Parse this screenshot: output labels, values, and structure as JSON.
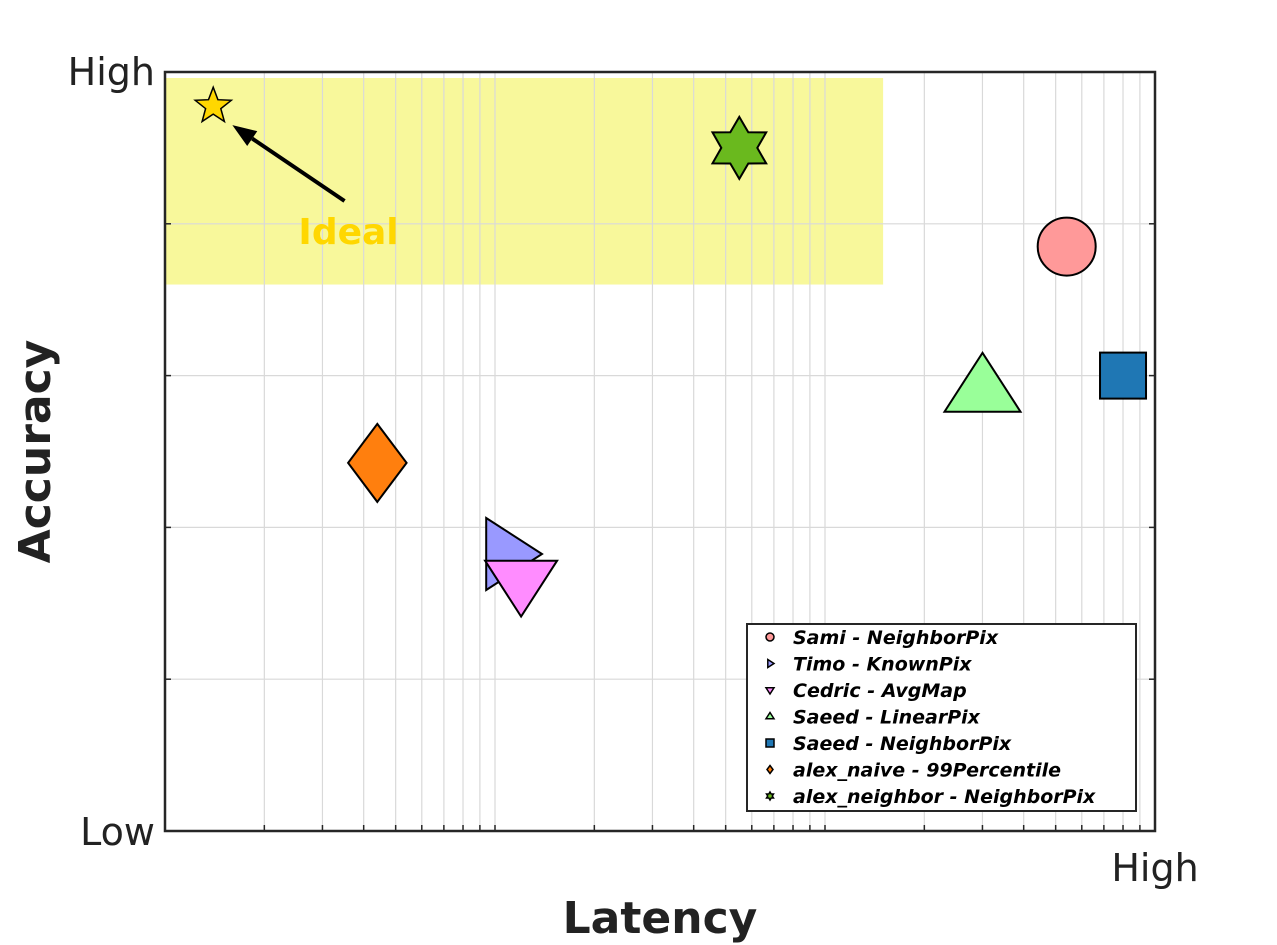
{
  "chart_data": {
    "type": "scatter",
    "title": "",
    "xlabel": "Latency",
    "ylabel": "Accuracy",
    "x_scale": "log",
    "xlim": [
      1,
      1000
    ],
    "ylim": [
      0,
      1
    ],
    "x_tick_labels": [
      "High"
    ],
    "y_tick_labels": [
      "Low",
      "High"
    ],
    "grid": true,
    "legend_position": "bottom-right",
    "ideal_region": {
      "x": [
        1,
        150
      ],
      "y": [
        0.72,
        1.0
      ],
      "color": "#f5f57a"
    },
    "annotation": {
      "text": "Ideal",
      "color": "#ffd700",
      "arrow_from": [
        3.5,
        0.83
      ],
      "arrow_to": [
        1.6,
        0.93
      ]
    },
    "ideal_marker": {
      "x": 1.4,
      "y": 0.955,
      "marker": "star",
      "color": "#ffd700"
    },
    "series": [
      {
        "name": "Sami - NeighborPix",
        "x": 540,
        "y": 0.77,
        "marker": "circle",
        "color": "#ff9999"
      },
      {
        "name": "Timo - KnownPix",
        "x": 10.8,
        "y": 0.365,
        "marker": "triangle-right",
        "color": "#9999ff"
      },
      {
        "name": "Cedric - AvgMap",
        "x": 12,
        "y": 0.33,
        "marker": "triangle-down",
        "color": "#ff8cff"
      },
      {
        "name": "Saeed - LinearPix",
        "x": 300,
        "y": 0.58,
        "marker": "triangle-up",
        "color": "#99ff99"
      },
      {
        "name": "Saeed - NeighborPix",
        "x": 800,
        "y": 0.6,
        "marker": "square",
        "color": "#1f77b4"
      },
      {
        "name": "alex_naive - 99Percentile",
        "x": 4.4,
        "y": 0.485,
        "marker": "diamond",
        "color": "#ff7f0e"
      },
      {
        "name": "alex_neighbor - NeighborPix",
        "x": 55,
        "y": 0.9,
        "marker": "hexagram",
        "color": "#6ab91e"
      }
    ]
  }
}
